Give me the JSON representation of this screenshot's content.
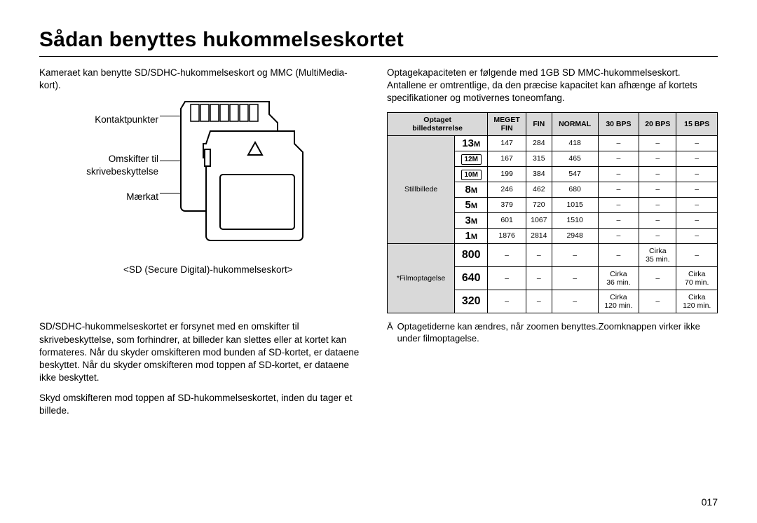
{
  "title": "Sådan benyttes hukommelseskortet",
  "left": {
    "p1": "Kameraet kan benytte SD/SDHC-hukommelseskort og MMC (MultiMedia-kort).",
    "labels": {
      "contacts": "Kontaktpunkter",
      "switch1": "Omskifter til",
      "switch2": "skrivebeskyttelse",
      "label": "Mærkat"
    },
    "caption": "<SD (Secure Digital)-hukommelseskort>",
    "p2": "SD/SDHC-hukommelseskortet er forsynet med en omskifter til skrivebeskyttelse, som forhindrer, at billeder kan slettes eller at kortet kan formateres. Når du skyder omskifteren mod bunden af SD-kortet, er dataene beskyttet. Når du skyder omskifteren mod toppen af SD-kortet, er dataene ikke beskyttet.",
    "p3": "Skyd omskifteren mod toppen af SD-hukommelseskortet, inden du tager et billede."
  },
  "right": {
    "p1": "Optagekapaciteten er følgende med 1GB SD MMC-hukommelseskort. Antallene er omtrentlige, da den præcise kapacitet kan afhænge af kortets specifikationer og motivernes toneomfang.",
    "headers": {
      "size1": "Optaget",
      "size2": "billedstørrelse",
      "vfine1": "MEGET",
      "vfine2": "FIN",
      "fine": "FIN",
      "normal": "NORMAL",
      "b30": "30 BPS",
      "b20": "20 BPS",
      "b15": "15 BPS"
    },
    "stillLabel": "Stillbillede",
    "movieLabel": "*Filmoptagelse",
    "still": [
      {
        "icon": "13M",
        "vf": "147",
        "f": "284",
        "n": "418"
      },
      {
        "icon": "box12",
        "vf": "167",
        "f": "315",
        "n": "465"
      },
      {
        "icon": "box10",
        "vf": "199",
        "f": "384",
        "n": "547"
      },
      {
        "icon": "8M",
        "vf": "246",
        "f": "462",
        "n": "680"
      },
      {
        "icon": "5M",
        "vf": "379",
        "f": "720",
        "n": "1015"
      },
      {
        "icon": "3M",
        "vf": "601",
        "f": "1067",
        "n": "1510"
      },
      {
        "icon": "1M",
        "vf": "1876",
        "f": "2814",
        "n": "2948"
      }
    ],
    "movie": [
      {
        "icon": "800",
        "b30": "–",
        "b20": "Cirka 35 min.",
        "b15": "–"
      },
      {
        "icon": "640",
        "b30": "Cirka 36 min.",
        "b20": "–",
        "b15": "Cirka 70 min."
      },
      {
        "icon": "320",
        "b30": "Cirka 120 min.",
        "b20": "–",
        "b15": "Cirka 120 min."
      }
    ],
    "footnote": "Optagetiderne kan ændres, når zoomen benyttes.Zoomknappen virker ikke under filmoptagelse.",
    "ast": "Ä"
  },
  "dash": "–",
  "pagenum": "017",
  "iconText": {
    "box12": "12M",
    "box10": "10M"
  }
}
